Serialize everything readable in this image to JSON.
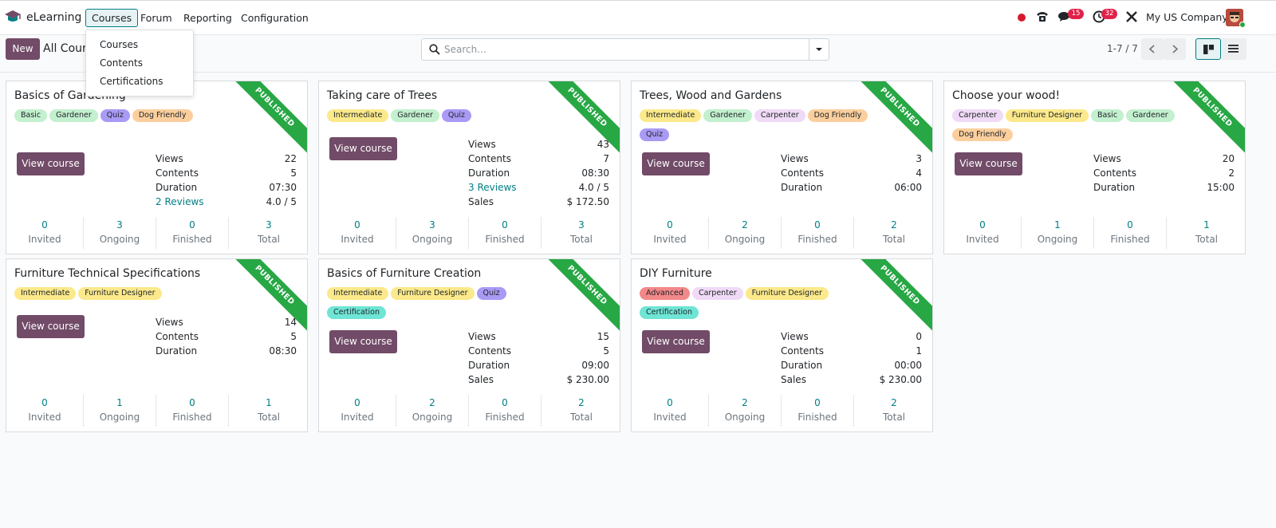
{
  "app": {
    "name": "eLearning"
  },
  "menu": {
    "courses": "Courses",
    "forum": "Forum",
    "reporting": "Reporting",
    "configuration": "Configuration"
  },
  "dropdown": {
    "items": [
      "Courses",
      "Contents",
      "Certifications"
    ]
  },
  "systray": {
    "messages_badge": "15",
    "activities_badge": "32",
    "company": "My US Company"
  },
  "control": {
    "new_label": "New",
    "breadcrumb": "All Courses",
    "search_placeholder": "Search...",
    "pager": "1-7 / 7"
  },
  "colors": {
    "brand": "#714b67",
    "accent": "#017e84",
    "ribbon": "#28a745",
    "badge": "#e0224a",
    "tag_basic": "#c3f0ce",
    "tag_gardener": "#c3f0ce",
    "tag_quiz": "#a99af5",
    "tag_dog_friendly": "#fbcf9d",
    "tag_intermediate": "#fbe98b",
    "tag_carpenter": "#f0daf7",
    "tag_furniture_designer": "#fbe98b",
    "tag_certification": "#6ee5d5",
    "tag_advanced": "#f38889"
  },
  "ribbon_label": "PUBLISHED",
  "view_course_label": "View course",
  "footer_labels": [
    "Invited",
    "Ongoing",
    "Finished",
    "Total"
  ],
  "courses": [
    {
      "title": "Basics of Gardening",
      "tags": [
        [
          "Basic",
          "#c3f0ce"
        ],
        [
          "Gardener",
          "#c3f0ce"
        ],
        [
          "Quiz",
          "#a99af5"
        ],
        [
          "Dog Friendly",
          "#fbcf9d"
        ]
      ],
      "stats": [
        [
          "Views",
          "22",
          false
        ],
        [
          "Contents",
          "5",
          false
        ],
        [
          "Duration",
          "07:30",
          false
        ],
        [
          "2 Reviews",
          "4.0 / 5",
          true
        ]
      ],
      "footer": [
        "0",
        "3",
        "0",
        "3"
      ]
    },
    {
      "title": "Taking care of Trees",
      "tags": [
        [
          "Intermediate",
          "#fbe98b"
        ],
        [
          "Gardener",
          "#c3f0ce"
        ],
        [
          "Quiz",
          "#a99af5"
        ]
      ],
      "stats": [
        [
          "Views",
          "43",
          false
        ],
        [
          "Contents",
          "7",
          false
        ],
        [
          "Duration",
          "08:30",
          false
        ],
        [
          "3 Reviews",
          "4.0 / 5",
          true
        ],
        [
          "Sales",
          "$ 172.50",
          false
        ]
      ],
      "footer": [
        "0",
        "3",
        "0",
        "3"
      ]
    },
    {
      "title": "Trees, Wood and Gardens",
      "tags": [
        [
          "Intermediate",
          "#fbe98b"
        ],
        [
          "Gardener",
          "#c3f0ce"
        ],
        [
          "Carpenter",
          "#f0daf7"
        ],
        [
          "Dog Friendly",
          "#fbcf9d"
        ],
        [
          "Quiz",
          "#a99af5"
        ]
      ],
      "stats": [
        [
          "Views",
          "3",
          false
        ],
        [
          "Contents",
          "4",
          false
        ],
        [
          "Duration",
          "06:00",
          false
        ]
      ],
      "footer": [
        "0",
        "2",
        "0",
        "2"
      ]
    },
    {
      "title": "Choose your wood!",
      "tags": [
        [
          "Carpenter",
          "#f0daf7"
        ],
        [
          "Furniture Designer",
          "#fbe98b"
        ],
        [
          "Basic",
          "#c3f0ce"
        ],
        [
          "Gardener",
          "#c3f0ce"
        ],
        [
          "Dog Friendly",
          "#fbcf9d"
        ]
      ],
      "stats": [
        [
          "Views",
          "20",
          false
        ],
        [
          "Contents",
          "2",
          false
        ],
        [
          "Duration",
          "15:00",
          false
        ]
      ],
      "footer": [
        "0",
        "1",
        "0",
        "1"
      ]
    },
    {
      "title": "Furniture Technical Specifications",
      "tags": [
        [
          "Intermediate",
          "#fbe98b"
        ],
        [
          "Furniture Designer",
          "#fbe98b"
        ]
      ],
      "stats": [
        [
          "Views",
          "14",
          false
        ],
        [
          "Contents",
          "5",
          false
        ],
        [
          "Duration",
          "08:30",
          false
        ]
      ],
      "footer": [
        "0",
        "1",
        "0",
        "1"
      ]
    },
    {
      "title": "Basics of Furniture Creation",
      "tags": [
        [
          "Intermediate",
          "#fbe98b"
        ],
        [
          "Furniture Designer",
          "#fbe98b"
        ],
        [
          "Quiz",
          "#a99af5"
        ],
        [
          "Certification",
          "#6ee5d5"
        ]
      ],
      "stats": [
        [
          "Views",
          "15",
          false
        ],
        [
          "Contents",
          "5",
          false
        ],
        [
          "Duration",
          "09:00",
          false
        ],
        [
          "Sales",
          "$ 230.00",
          false
        ]
      ],
      "footer": [
        "0",
        "2",
        "0",
        "2"
      ]
    },
    {
      "title": "DIY Furniture",
      "tags": [
        [
          "Advanced",
          "#f38889"
        ],
        [
          "Carpenter",
          "#f0daf7"
        ],
        [
          "Furniture Designer",
          "#fbe98b"
        ],
        [
          "Certification",
          "#6ee5d5"
        ]
      ],
      "stats": [
        [
          "Views",
          "0",
          false
        ],
        [
          "Contents",
          "1",
          false
        ],
        [
          "Duration",
          "00:00",
          false
        ],
        [
          "Sales",
          "$ 230.00",
          false
        ]
      ],
      "footer": [
        "0",
        "2",
        "0",
        "2"
      ]
    }
  ]
}
